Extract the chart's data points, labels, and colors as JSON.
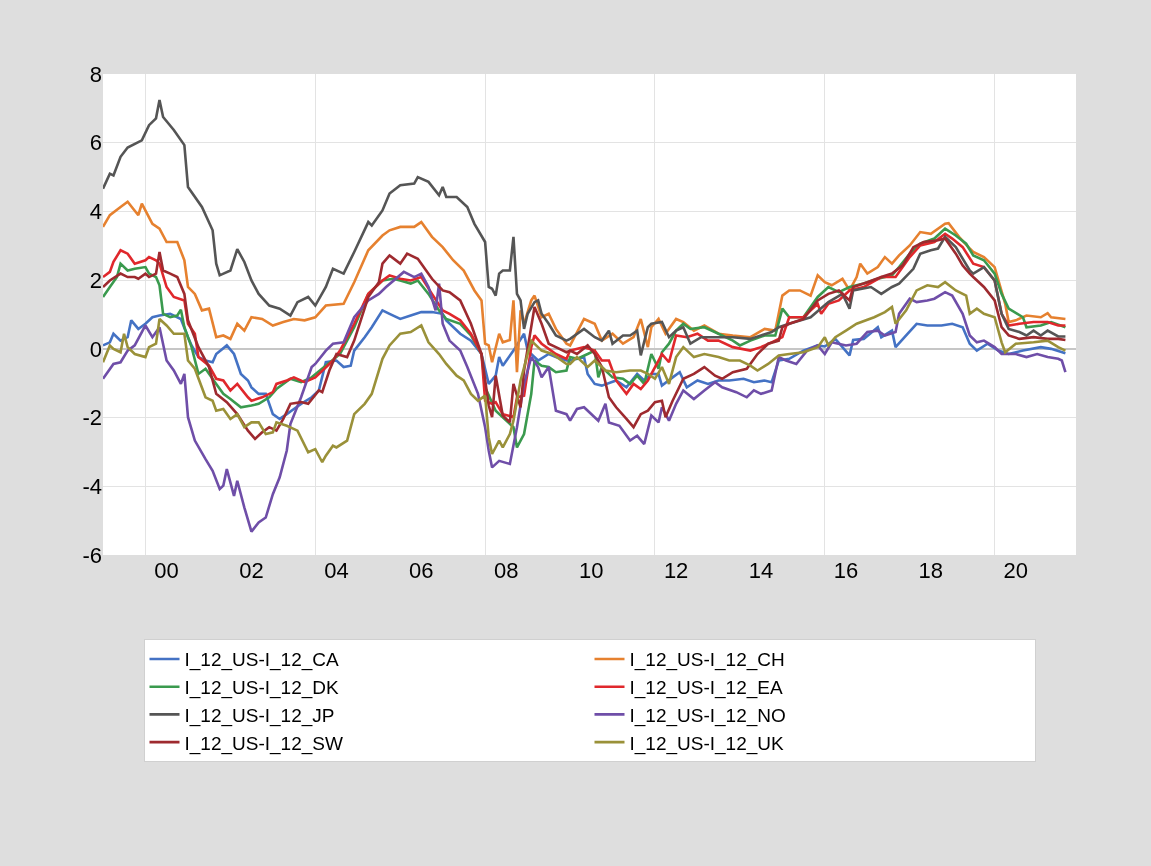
{
  "chart_data": {
    "type": "line",
    "xlim": [
      "1999-01",
      "2021-12"
    ],
    "ylim": [
      -6,
      8
    ],
    "yticks": [
      -6,
      -4,
      -2,
      0,
      2,
      4,
      6,
      8
    ],
    "xticks": [
      {
        "value": "2000-01",
        "label": null
      },
      {
        "value": "2004-01",
        "label": null
      },
      {
        "value": "2008-01",
        "label": null
      },
      {
        "value": "2012-01",
        "label": null
      },
      {
        "value": "2016-01",
        "label": null
      },
      {
        "value": "2020-01",
        "label": null
      },
      {
        "value": "2000-07",
        "label": "00"
      },
      {
        "value": "2002-07",
        "label": "02"
      },
      {
        "value": "2004-07",
        "label": "04"
      },
      {
        "value": "2006-07",
        "label": "06"
      },
      {
        "value": "2008-07",
        "label": "08"
      },
      {
        "value": "2010-07",
        "label": "10"
      },
      {
        "value": "2012-07",
        "label": "12"
      },
      {
        "value": "2014-07",
        "label": "14"
      },
      {
        "value": "2016-07",
        "label": "16"
      },
      {
        "value": "2018-07",
        "label": "18"
      },
      {
        "value": "2020-07",
        "label": "20"
      }
    ],
    "grid": true,
    "legend": "bottom",
    "line_style": "solid",
    "series": [
      {
        "name": "I_12_US-I_12_CA",
        "color": "#4472c4",
        "x": [
          "1999-01",
          "1999-03",
          "1999-04",
          "1999-06",
          "1999-08",
          "1999-09",
          "1999-11",
          "2000-01",
          "2000-03",
          "2000-05",
          "2000-08",
          "2000-11",
          "2001-01",
          "2001-02",
          "2001-04",
          "2001-06",
          "2001-08",
          "2001-09",
          "2001-12",
          "2002-02",
          "2002-04",
          "2002-06",
          "2002-07",
          "2002-09",
          "2002-11",
          "2003-01",
          "2003-03",
          "2003-05",
          "2003-07",
          "2003-09",
          "2003-12",
          "2004-02",
          "2004-04",
          "2004-07",
          "2004-09",
          "2004-11",
          "2004-12",
          "2005-03",
          "2005-05",
          "2005-08",
          "2005-10",
          "2006-01",
          "2006-04",
          "2006-07",
          "2006-10",
          "2007-01",
          "2007-02",
          "2007-06",
          "2007-09",
          "2007-12",
          "2008-02",
          "2008-04",
          "2008-05",
          "2008-06",
          "2008-09",
          "2008-12",
          "2009-01",
          "2009-04",
          "2009-07",
          "2009-09",
          "2009-12",
          "2010-01",
          "2010-05",
          "2010-06",
          "2010-08",
          "2010-10",
          "2011-02",
          "2011-05",
          "2011-08",
          "2011-10",
          "2011-12",
          "2012-02",
          "2012-03",
          "2012-06",
          "2012-08",
          "2012-10",
          "2013-01",
          "2013-04",
          "2013-07",
          "2013-10",
          "2014-02",
          "2014-05",
          "2014-08",
          "2014-10",
          "2014-12",
          "2015-03",
          "2015-07",
          "2015-11",
          "2016-01",
          "2016-04",
          "2016-08",
          "2016-09",
          "2016-12",
          "2017-04",
          "2017-05",
          "2017-08",
          "2017-09",
          "2017-12",
          "2018-03",
          "2018-06",
          "2018-10",
          "2019-01",
          "2019-04",
          "2019-06",
          "2019-08",
          "2019-11",
          "2020-02",
          "2020-05",
          "2020-09",
          "2021-02",
          "2021-05",
          "2021-09"
        ],
        "values": [
          0.1,
          0.19,
          0.44,
          0.24,
          0.34,
          0.83,
          0.58,
          0.73,
          0.92,
          0.97,
          1.02,
          0.87,
          0.34,
          0.1,
          -0.24,
          -0.34,
          -0.39,
          -0.15,
          0.1,
          -0.15,
          -0.73,
          -0.92,
          -1.12,
          -1.31,
          -1.31,
          -1.9,
          -2.04,
          -1.9,
          -1.75,
          -1.6,
          -1.41,
          -1.21,
          -0.39,
          -0.34,
          -0.53,
          -0.49,
          -0.05,
          0.34,
          0.63,
          1.12,
          1.02,
          0.87,
          0.97,
          1.07,
          1.07,
          1.02,
          0.83,
          0.44,
          0.24,
          -0.15,
          -1.02,
          -0.78,
          -0.24,
          -0.49,
          -0.05,
          0.44,
          -0.05,
          -0.34,
          -0.15,
          -0.24,
          -0.34,
          -0.34,
          -0.24,
          -0.73,
          -1.02,
          -1.07,
          -0.92,
          -1.12,
          -0.73,
          -0.92,
          -0.73,
          -0.73,
          -1.07,
          -0.83,
          -0.68,
          -1.12,
          -0.92,
          -1.02,
          -0.92,
          -0.92,
          -0.87,
          -0.97,
          -0.92,
          -0.97,
          -0.34,
          -0.29,
          -0.05,
          0.1,
          0.07,
          0.29,
          -0.19,
          0.26,
          0.29,
          0.63,
          0.34,
          0.53,
          0.05,
          0.39,
          0.73,
          0.68,
          0.68,
          0.73,
          0.63,
          0.15,
          -0.05,
          0.15,
          -0.05,
          -0.15,
          -0.05,
          0.05,
          0.0,
          -0.13
        ]
      },
      {
        "name": "I_12_US-I_12_CH",
        "color": "#e6812f",
        "x": [
          "1999-01",
          "1999-03",
          "1999-06",
          "1999-08",
          "1999-11",
          "1999-12",
          "2000-03",
          "2000-05",
          "2000-07",
          "2000-10",
          "2000-12",
          "2001-01",
          "2001-03",
          "2001-05",
          "2001-07",
          "2001-09",
          "2001-11",
          "2002-01",
          "2002-03",
          "2002-05",
          "2002-07",
          "2002-10",
          "2003-01",
          "2003-04",
          "2003-07",
          "2003-10",
          "2004-01",
          "2004-04",
          "2004-09",
          "2004-12",
          "2005-04",
          "2005-08",
          "2005-10",
          "2006-01",
          "2006-05",
          "2006-07",
          "2006-10",
          "2007-01",
          "2007-04",
          "2007-07",
          "2007-10",
          "2007-12",
          "2008-01",
          "2008-02",
          "2008-03",
          "2008-05",
          "2008-06",
          "2008-08",
          "2008-09",
          "2008-10",
          "2008-11",
          "2008-12",
          "2009-02",
          "2009-03",
          "2009-05",
          "2009-07",
          "2009-09",
          "2009-12",
          "2010-01",
          "2010-05",
          "2010-08",
          "2010-10",
          "2011-01",
          "2011-04",
          "2011-07",
          "2011-09",
          "2011-11",
          "2011-12",
          "2012-02",
          "2012-04",
          "2012-07",
          "2012-09",
          "2012-12",
          "2013-03",
          "2013-07",
          "2013-11",
          "2014-04",
          "2014-08",
          "2014-11",
          "2015-01",
          "2015-03",
          "2015-06",
          "2015-09",
          "2015-11",
          "2016-01",
          "2016-03",
          "2016-06",
          "2016-08",
          "2016-10",
          "2016-11",
          "2017-01",
          "2017-04",
          "2017-06",
          "2017-08",
          "2017-10",
          "2018-01",
          "2018-04",
          "2018-07",
          "2018-11",
          "2018-12",
          "2019-03",
          "2019-06",
          "2019-07",
          "2019-10",
          "2020-01",
          "2020-04",
          "2020-05",
          "2020-07",
          "2020-10",
          "2021-02",
          "2021-04",
          "2021-05",
          "2021-09"
        ],
        "values": [
          3.55,
          3.89,
          4.13,
          4.28,
          3.89,
          4.23,
          3.64,
          3.5,
          3.11,
          3.11,
          2.58,
          1.8,
          1.6,
          1.12,
          1.17,
          0.34,
          0.39,
          0.29,
          0.73,
          0.53,
          0.92,
          0.87,
          0.68,
          0.78,
          0.87,
          0.83,
          0.92,
          1.26,
          1.31,
          1.94,
          2.87,
          3.3,
          3.45,
          3.55,
          3.55,
          3.69,
          3.26,
          2.96,
          2.58,
          2.28,
          1.7,
          1.41,
          0.15,
          0.1,
          -0.39,
          0.44,
          0.19,
          0.26,
          1.41,
          -0.68,
          1.12,
          0.73,
          1.41,
          1.55,
          0.92,
          1.02,
          0.58,
          0.15,
          0.1,
          0.87,
          0.73,
          0.24,
          0.44,
          0.15,
          0.34,
          0.87,
          0.05,
          0.63,
          0.87,
          0.44,
          0.87,
          0.78,
          0.53,
          0.68,
          0.44,
          0.39,
          0.34,
          0.58,
          0.53,
          1.55,
          1.7,
          1.7,
          1.55,
          2.14,
          1.94,
          1.85,
          2.04,
          1.7,
          2.09,
          2.48,
          2.19,
          2.38,
          2.67,
          2.48,
          2.72,
          3.01,
          3.4,
          3.35,
          3.64,
          3.66,
          3.26,
          2.92,
          2.82,
          2.67,
          2.38,
          1.31,
          0.78,
          0.83,
          0.97,
          0.92,
          1.04,
          0.92,
          0.87
        ]
      },
      {
        "name": "I_12_US-I_12_DK",
        "color": "#3a9a4e",
        "x": [
          "1999-01",
          "1999-03",
          "1999-05",
          "1999-06",
          "1999-08",
          "1999-10",
          "2000-01",
          "2000-02",
          "2000-04",
          "2000-05",
          "2000-06",
          "2000-08",
          "2000-10",
          "2000-11",
          "2000-12",
          "2001-02",
          "2001-04",
          "2001-06",
          "2001-09",
          "2001-11",
          "2002-01",
          "2002-04",
          "2002-07",
          "2002-09",
          "2002-12",
          "2003-02",
          "2003-06",
          "2003-09",
          "2003-12",
          "2004-08",
          "2004-12",
          "2005-04",
          "2005-08",
          "2005-11",
          "2006-01",
          "2006-04",
          "2006-06",
          "2006-09",
          "2006-12",
          "2007-02",
          "2007-06",
          "2007-09",
          "2007-12",
          "2008-01",
          "2008-04",
          "2008-07",
          "2008-09",
          "2008-10",
          "2008-12",
          "2009-02",
          "2009-03",
          "2009-05",
          "2009-07",
          "2009-09",
          "2009-12",
          "2010-01",
          "2010-03",
          "2010-06",
          "2010-08",
          "2010-09",
          "2010-10",
          "2011-01",
          "2011-04",
          "2011-06",
          "2011-08",
          "2011-10",
          "2011-12",
          "2012-02",
          "2012-03",
          "2012-05",
          "2012-07",
          "2012-09",
          "2012-11",
          "2013-03",
          "2013-07",
          "2013-11",
          "2014-01",
          "2014-04",
          "2014-08",
          "2014-11",
          "2015-01",
          "2015-03",
          "2015-07",
          "2015-11",
          "2016-02",
          "2016-05",
          "2016-08",
          "2016-12",
          "2017-04",
          "2017-08",
          "2017-10",
          "2018-01",
          "2018-04",
          "2018-08",
          "2018-11",
          "2019-02",
          "2019-05",
          "2019-07",
          "2019-10",
          "2020-01",
          "2020-03",
          "2020-05",
          "2020-09",
          "2020-10",
          "2021-02",
          "2021-05",
          "2021-09"
        ],
        "values": [
          1.51,
          1.8,
          2.09,
          2.48,
          2.28,
          2.33,
          2.38,
          2.19,
          2.09,
          1.85,
          1.02,
          0.92,
          0.97,
          1.14,
          0.63,
          0.05,
          -0.73,
          -0.58,
          -1.02,
          -1.31,
          -1.46,
          -1.7,
          -1.65,
          -1.6,
          -1.41,
          -1.17,
          -0.87,
          -0.97,
          -0.83,
          -0.15,
          0.63,
          1.6,
          1.99,
          2.04,
          1.99,
          1.9,
          1.99,
          1.6,
          1.12,
          0.87,
          0.73,
          0.39,
          -0.15,
          -1.12,
          -1.8,
          -2.09,
          -2.28,
          -2.87,
          -2.48,
          -1.31,
          -0.34,
          -0.49,
          -0.53,
          -0.68,
          -0.63,
          -0.24,
          -0.29,
          -0.15,
          -0.05,
          -0.83,
          -0.53,
          -0.83,
          -0.87,
          -1.02,
          -0.78,
          -1.02,
          -0.15,
          -0.58,
          -0.1,
          0.15,
          0.53,
          0.73,
          0.58,
          0.63,
          0.44,
          0.24,
          0.1,
          0.24,
          0.39,
          0.39,
          1.17,
          0.92,
          0.92,
          1.51,
          1.8,
          1.65,
          1.8,
          1.9,
          2.04,
          2.14,
          2.38,
          2.77,
          3.06,
          3.21,
          3.5,
          3.3,
          3.06,
          2.72,
          2.58,
          2.19,
          1.6,
          1.17,
          0.92,
          0.63,
          0.68,
          0.78,
          0.63
        ]
      },
      {
        "name": "I_12_US-I_12_EA",
        "color": "#e0282c",
        "x": [
          "1999-01",
          "1999-03",
          "1999-04",
          "1999-06",
          "1999-08",
          "1999-10",
          "2000-01",
          "2000-02",
          "2000-04",
          "2000-05",
          "2000-07",
          "2000-09",
          "2000-12",
          "2001-01",
          "2001-03",
          "2001-04",
          "2001-07",
          "2001-09",
          "2001-11",
          "2002-01",
          "2002-03",
          "2002-06",
          "2002-07",
          "2002-10",
          "2003-01",
          "2003-02",
          "2003-05",
          "2003-07",
          "2003-10",
          "2004-01",
          "2004-06",
          "2004-08",
          "2004-12",
          "2005-04",
          "2005-08",
          "2005-10",
          "2006-01",
          "2006-04",
          "2006-07",
          "2006-10",
          "2007-01",
          "2007-03",
          "2007-06",
          "2007-09",
          "2007-12",
          "2008-01",
          "2008-03",
          "2008-04",
          "2008-06",
          "2008-09",
          "2008-10",
          "2008-12",
          "2009-02",
          "2009-03",
          "2009-05",
          "2009-09",
          "2009-12",
          "2010-01",
          "2010-05",
          "2010-08",
          "2010-10",
          "2010-12",
          "2011-02",
          "2011-05",
          "2011-07",
          "2011-09",
          "2011-11",
          "2012-02",
          "2012-03",
          "2012-05",
          "2012-07",
          "2012-10",
          "2013-01",
          "2013-04",
          "2013-07",
          "2013-11",
          "2014-04",
          "2014-07",
          "2014-10",
          "2015-01",
          "2015-03",
          "2015-07",
          "2015-11",
          "2015-12",
          "2016-02",
          "2016-05",
          "2016-08",
          "2016-12",
          "2017-05",
          "2017-09",
          "2018-01",
          "2018-04",
          "2018-08",
          "2018-11",
          "2019-01",
          "2019-04",
          "2019-07",
          "2019-10",
          "2020-01",
          "2020-03",
          "2020-05",
          "2020-08",
          "2020-12",
          "2021-04",
          "2021-07",
          "2021-09"
        ],
        "values": [
          2.09,
          2.24,
          2.53,
          2.87,
          2.77,
          2.48,
          2.58,
          2.67,
          2.58,
          2.48,
          1.8,
          1.51,
          1.41,
          0.73,
          0.44,
          -0.24,
          -0.49,
          -0.87,
          -0.92,
          -1.21,
          -1.02,
          -1.41,
          -1.51,
          -1.41,
          -1.26,
          -1.02,
          -0.92,
          -0.83,
          -0.97,
          -0.83,
          -0.34,
          -0.05,
          0.73,
          1.6,
          1.99,
          2.14,
          2.04,
          1.99,
          2.09,
          1.6,
          1.12,
          1.02,
          0.83,
          0.44,
          -0.15,
          -1.51,
          -1.6,
          -1.55,
          -1.9,
          -1.99,
          -1.41,
          -1.36,
          0.05,
          0.39,
          0.15,
          -0.15,
          -0.29,
          -0.05,
          0.05,
          -0.05,
          -0.34,
          -0.34,
          -0.92,
          -1.31,
          -1.02,
          -1.17,
          -0.92,
          -0.34,
          -0.15,
          -0.39,
          0.39,
          0.34,
          0.44,
          0.24,
          0.24,
          0.05,
          -0.05,
          0.05,
          0.19,
          0.34,
          0.92,
          0.92,
          1.31,
          1.02,
          1.31,
          1.41,
          1.7,
          1.8,
          2.09,
          2.09,
          2.67,
          3.01,
          3.11,
          3.35,
          3.21,
          2.96,
          2.48,
          2.38,
          1.99,
          1.02,
          0.68,
          0.73,
          0.78,
          0.78,
          0.68,
          0.68
        ]
      },
      {
        "name": "I_12_US-I_12_JP",
        "color": "#555555",
        "x": [
          "1999-01",
          "1999-03",
          "1999-04",
          "1999-06",
          "1999-08",
          "1999-12",
          "2000-02",
          "2000-04",
          "2000-05",
          "2000-06",
          "2000-09",
          "2000-12",
          "2001-01",
          "2001-05",
          "2001-08",
          "2001-09",
          "2001-10",
          "2002-01",
          "2002-03",
          "2002-05",
          "2002-07",
          "2002-09",
          "2002-12",
          "2003-03",
          "2003-06",
          "2003-08",
          "2003-11",
          "2004-01",
          "2004-04",
          "2004-06",
          "2004-09",
          "2004-12",
          "2005-04",
          "2005-05",
          "2005-08",
          "2005-10",
          "2006-01",
          "2006-05",
          "2006-06",
          "2006-09",
          "2006-12",
          "2007-01",
          "2007-02",
          "2007-05",
          "2007-08",
          "2007-10",
          "2008-01",
          "2008-02",
          "2008-03",
          "2008-04",
          "2008-05",
          "2008-06",
          "2008-08",
          "2008-09",
          "2008-10",
          "2008-11",
          "2008-12",
          "2009-01",
          "2009-03",
          "2009-04",
          "2009-05",
          "2009-07",
          "2009-09",
          "2009-12",
          "2010-01",
          "2010-05",
          "2010-08",
          "2010-10",
          "2010-12",
          "2011-01",
          "2011-04",
          "2011-06",
          "2011-08",
          "2011-09",
          "2011-11",
          "2011-12",
          "2012-03",
          "2012-05",
          "2012-07",
          "2012-09",
          "2012-11",
          "2013-02",
          "2013-07",
          "2013-11",
          "2014-04",
          "2014-07",
          "2014-10",
          "2014-12",
          "2015-03",
          "2015-09",
          "2016-02",
          "2016-06",
          "2016-08",
          "2016-09",
          "2017-02",
          "2017-05",
          "2017-08",
          "2017-10",
          "2018-02",
          "2018-04",
          "2018-07",
          "2018-09",
          "2018-11",
          "2019-02",
          "2019-06",
          "2019-07",
          "2019-10",
          "2020-01",
          "2020-03",
          "2020-05",
          "2020-08",
          "2020-10",
          "2020-12",
          "2021-02",
          "2021-04",
          "2021-07",
          "2021-09"
        ],
        "values": [
          4.66,
          5.1,
          5.05,
          5.59,
          5.86,
          6.07,
          6.51,
          6.71,
          7.24,
          6.75,
          6.37,
          5.93,
          4.71,
          4.13,
          3.45,
          2.48,
          2.14,
          2.28,
          2.9,
          2.53,
          1.99,
          1.6,
          1.26,
          1.17,
          0.97,
          1.36,
          1.51,
          1.26,
          1.8,
          2.33,
          2.19,
          2.82,
          3.69,
          3.59,
          4.03,
          4.52,
          4.76,
          4.81,
          5.0,
          4.86,
          4.47,
          4.71,
          4.42,
          4.42,
          4.13,
          3.64,
          3.11,
          1.8,
          1.75,
          1.55,
          2.19,
          2.28,
          2.28,
          3.26,
          1.6,
          1.41,
          0.58,
          1.02,
          1.36,
          1.41,
          1.02,
          0.73,
          0.39,
          0.24,
          0.29,
          0.58,
          0.34,
          0.24,
          0.53,
          0.15,
          0.39,
          0.39,
          0.53,
          -0.19,
          0.63,
          0.73,
          0.78,
          0.34,
          0.53,
          0.63,
          0.15,
          0.34,
          0.34,
          0.34,
          0.29,
          0.39,
          0.49,
          0.63,
          0.73,
          0.92,
          1.36,
          1.6,
          1.17,
          1.7,
          1.8,
          1.6,
          1.8,
          1.9,
          2.33,
          2.77,
          2.87,
          2.92,
          3.26,
          2.96,
          2.28,
          2.19,
          2.38,
          1.99,
          1.02,
          0.58,
          0.49,
          0.39,
          0.53,
          0.39,
          0.53,
          0.36,
          0.36
        ]
      },
      {
        "name": "I_12_US-I_12_NO",
        "color": "#6f4ea8",
        "x": [
          "1999-01",
          "1999-04",
          "1999-06",
          "1999-08",
          "1999-10",
          "1999-12",
          "2000-01",
          "2000-03",
          "2000-05",
          "2000-07",
          "2000-09",
          "2000-11",
          "2000-12",
          "2001-01",
          "2001-03",
          "2001-06",
          "2001-08",
          "2001-10",
          "2001-11",
          "2001-12",
          "2002-02",
          "2002-03",
          "2002-05",
          "2002-07",
          "2002-09",
          "2002-11",
          "2003-01",
          "2003-03",
          "2003-05",
          "2003-06",
          "2003-09",
          "2003-12",
          "2004-01",
          "2004-04",
          "2004-06",
          "2004-09",
          "2004-12",
          "2005-04",
          "2005-07",
          "2005-09",
          "2006-02",
          "2006-05",
          "2006-07",
          "2006-09",
          "2006-11",
          "2006-12",
          "2007-01",
          "2007-03",
          "2007-06",
          "2007-08",
          "2007-11",
          "2008-01",
          "2008-02",
          "2008-03",
          "2008-05",
          "2008-08",
          "2008-10",
          "2008-12",
          "2009-02",
          "2009-04",
          "2009-05",
          "2009-07",
          "2009-09",
          "2009-12",
          "2010-01",
          "2010-03",
          "2010-05",
          "2010-09",
          "2010-11",
          "2010-12",
          "2011-03",
          "2011-06",
          "2011-08",
          "2011-10",
          "2011-12",
          "2012-02",
          "2012-03",
          "2012-05",
          "2012-07",
          "2012-09",
          "2012-12",
          "2013-03",
          "2013-06",
          "2013-08",
          "2013-12",
          "2014-03",
          "2014-05",
          "2014-07",
          "2014-10",
          "2014-12",
          "2015-02",
          "2015-05",
          "2015-08",
          "2015-11",
          "2016-01",
          "2016-03",
          "2016-07",
          "2016-10",
          "2017-01",
          "2017-04",
          "2017-06",
          "2017-09",
          "2017-10",
          "2018-01",
          "2018-03",
          "2018-06",
          "2018-08",
          "2018-11",
          "2019-01",
          "2019-04",
          "2019-06",
          "2019-08",
          "2019-10",
          "2020-01",
          "2020-03",
          "2020-07",
          "2020-10",
          "2021-01",
          "2021-04",
          "2021-07",
          "2021-08",
          "2021-09"
        ],
        "values": [
          -0.87,
          -0.44,
          -0.39,
          -0.05,
          0.1,
          0.49,
          0.68,
          0.34,
          0.63,
          -0.34,
          -0.63,
          -1.02,
          -0.73,
          -1.99,
          -2.67,
          -3.21,
          -3.55,
          -4.08,
          -3.98,
          -3.5,
          -4.28,
          -3.84,
          -4.62,
          -5.32,
          -5.05,
          -4.91,
          -4.23,
          -3.74,
          -2.96,
          -2.19,
          -1.41,
          -0.53,
          -0.44,
          -0.05,
          0.15,
          0.19,
          0.92,
          1.41,
          1.6,
          1.8,
          2.24,
          2.09,
          2.19,
          1.8,
          1.12,
          1.9,
          0.73,
          0.24,
          -0.05,
          -0.53,
          -1.31,
          -2.28,
          -2.96,
          -3.45,
          -3.26,
          -3.35,
          -2.28,
          -1.02,
          -0.24,
          -0.53,
          -0.83,
          -0.53,
          -1.8,
          -1.9,
          -2.09,
          -1.75,
          -1.7,
          -2.09,
          -1.6,
          -2.14,
          -2.24,
          -2.67,
          -2.53,
          -2.77,
          -1.94,
          -2.14,
          -1.7,
          -2.09,
          -1.6,
          -1.21,
          -1.46,
          -1.21,
          -0.97,
          -1.12,
          -1.26,
          -1.41,
          -1.21,
          -1.31,
          -1.21,
          -0.24,
          -0.34,
          -0.44,
          -0.05,
          0.1,
          -0.15,
          0.19,
          0.1,
          0.15,
          0.49,
          0.53,
          0.39,
          0.49,
          1.02,
          1.46,
          1.36,
          1.41,
          1.46,
          1.65,
          1.55,
          1.02,
          0.39,
          0.19,
          0.24,
          0.05,
          -0.15,
          -0.15,
          -0.24,
          -0.15,
          -0.24,
          -0.29,
          -0.34,
          -0.68
        ]
      },
      {
        "name": "I_12_US-I_12_SW",
        "color": "#9e2a2f",
        "x": [
          "1999-01",
          "1999-03",
          "1999-06",
          "1999-08",
          "1999-10",
          "1999-11",
          "2000-01",
          "2000-02",
          "2000-04",
          "2000-05",
          "2000-06",
          "2000-08",
          "2000-10",
          "2000-12",
          "2001-01",
          "2001-04",
          "2001-07",
          "2001-09",
          "2001-12",
          "2002-03",
          "2002-06",
          "2002-08",
          "2002-10",
          "2002-12",
          "2003-02",
          "2003-04",
          "2003-06",
          "2003-09",
          "2003-11",
          "2004-02",
          "2004-03",
          "2004-05",
          "2004-07",
          "2004-10",
          "2004-12",
          "2005-04",
          "2005-07",
          "2005-08",
          "2005-10",
          "2006-01",
          "2006-03",
          "2006-06",
          "2006-10",
          "2007-01",
          "2007-03",
          "2007-06",
          "2007-09",
          "2007-12",
          "2008-02",
          "2008-03",
          "2008-04",
          "2008-06",
          "2008-08",
          "2008-09",
          "2008-11",
          "2008-12",
          "2009-03",
          "2009-05",
          "2009-07",
          "2009-09",
          "2009-12",
          "2010-01",
          "2010-03",
          "2010-06",
          "2010-08",
          "2010-10",
          "2010-12",
          "2011-02",
          "2011-05",
          "2011-07",
          "2011-09",
          "2011-11",
          "2012-01",
          "2012-03",
          "2012-04",
          "2012-06",
          "2012-09",
          "2012-12",
          "2013-03",
          "2013-06",
          "2013-08",
          "2013-11",
          "2014-03",
          "2014-06",
          "2014-09",
          "2014-12",
          "2015-01",
          "2015-03",
          "2015-07",
          "2015-11",
          "2016-02",
          "2016-05",
          "2016-08",
          "2016-09",
          "2017-01",
          "2017-05",
          "2017-08",
          "2017-11",
          "2018-02",
          "2018-05",
          "2018-09",
          "2018-11",
          "2019-02",
          "2019-04",
          "2019-06",
          "2019-07",
          "2019-10",
          "2020-01",
          "2020-03",
          "2020-05",
          "2020-08",
          "2020-12",
          "2021-04",
          "2021-07",
          "2021-09"
        ],
        "values": [
          1.8,
          1.99,
          2.19,
          2.09,
          2.09,
          2.04,
          2.19,
          2.09,
          2.19,
          2.82,
          2.28,
          2.19,
          2.09,
          1.6,
          0.83,
          0.05,
          -0.53,
          -1.31,
          -1.55,
          -1.9,
          -2.38,
          -2.62,
          -2.43,
          -2.28,
          -2.38,
          -2.04,
          -1.6,
          -1.55,
          -1.6,
          -1.21,
          -1.26,
          -0.63,
          -0.15,
          -0.24,
          0.24,
          1.51,
          1.94,
          2.48,
          2.72,
          2.48,
          2.77,
          2.62,
          2.04,
          1.7,
          1.65,
          1.41,
          0.73,
          -0.15,
          -1.65,
          -1.99,
          -0.78,
          -1.94,
          -2.14,
          -1.02,
          -1.7,
          -0.63,
          1.22,
          0.73,
          0.15,
          0.05,
          -0.1,
          -0.05,
          -0.15,
          0.1,
          -0.15,
          -0.53,
          -1.41,
          -1.7,
          -2.04,
          -2.28,
          -1.9,
          -1.8,
          -1.55,
          -1.51,
          -1.99,
          -1.51,
          -0.87,
          -0.73,
          -0.53,
          -0.78,
          -0.87,
          -0.68,
          -0.58,
          -0.15,
          0.15,
          0.24,
          0.63,
          0.73,
          0.87,
          1.41,
          1.6,
          1.7,
          1.41,
          1.8,
          1.94,
          2.09,
          2.19,
          2.43,
          2.96,
          3.11,
          3.16,
          3.21,
          2.77,
          2.43,
          2.19,
          2.09,
          1.8,
          1.41,
          0.63,
          0.39,
          0.29,
          0.34,
          0.29,
          0.29,
          0.26
        ]
      },
      {
        "name": "I_12_US-I_12_UK",
        "color": "#9a9139",
        "x": [
          "1999-01",
          "1999-03",
          "1999-04",
          "1999-06",
          "1999-07",
          "1999-08",
          "1999-10",
          "2000-01",
          "2000-02",
          "2000-04",
          "2000-05",
          "2000-07",
          "2000-09",
          "2000-12",
          "2001-01",
          "2001-03",
          "2001-06",
          "2001-08",
          "2001-09",
          "2001-11",
          "2002-01",
          "2002-03",
          "2002-05",
          "2002-07",
          "2002-09",
          "2002-11",
          "2003-01",
          "2003-02",
          "2003-05",
          "2003-08",
          "2003-11",
          "2004-01",
          "2004-03",
          "2004-04",
          "2004-06",
          "2004-07",
          "2004-10",
          "2004-12",
          "2005-03",
          "2005-05",
          "2005-08",
          "2005-10",
          "2006-01",
          "2006-04",
          "2006-07",
          "2006-09",
          "2006-12",
          "2007-02",
          "2007-05",
          "2007-07",
          "2007-09",
          "2007-11",
          "2008-01",
          "2008-02",
          "2008-03",
          "2008-05",
          "2008-06",
          "2008-08",
          "2008-09",
          "2008-11",
          "2009-02",
          "2009-05",
          "2009-08",
          "2009-12",
          "2010-01",
          "2010-03",
          "2010-06",
          "2010-08",
          "2010-10",
          "2010-11",
          "2011-02",
          "2011-06",
          "2011-09",
          "2011-11",
          "2012-01",
          "2012-03",
          "2012-05",
          "2012-07",
          "2012-09",
          "2012-12",
          "2013-03",
          "2013-07",
          "2013-10",
          "2014-01",
          "2014-04",
          "2014-06",
          "2014-09",
          "2014-12",
          "2015-03",
          "2015-07",
          "2015-11",
          "2016-01",
          "2016-02",
          "2016-04",
          "2016-07",
          "2016-10",
          "2017-03",
          "2017-06",
          "2017-08",
          "2017-09",
          "2017-12",
          "2018-03",
          "2018-06",
          "2018-09",
          "2018-11",
          "2019-02",
          "2019-05",
          "2019-06",
          "2019-08",
          "2019-10",
          "2020-01",
          "2020-03",
          "2020-04",
          "2020-07",
          "2020-12",
          "2021-04",
          "2021-07",
          "2021-09"
        ],
        "values": [
          -0.39,
          0.1,
          0.0,
          -0.1,
          0.44,
          0.05,
          -0.15,
          -0.24,
          0.05,
          0.15,
          0.87,
          0.68,
          0.44,
          0.44,
          -0.34,
          -0.58,
          -1.41,
          -1.51,
          -1.8,
          -1.75,
          -2.04,
          -1.9,
          -2.28,
          -2.14,
          -2.14,
          -2.48,
          -2.43,
          -2.14,
          -2.24,
          -2.38,
          -3.01,
          -2.92,
          -3.3,
          -3.11,
          -2.82,
          -2.87,
          -2.67,
          -1.9,
          -1.6,
          -1.31,
          -0.29,
          0.1,
          0.44,
          0.49,
          0.68,
          0.19,
          -0.15,
          -0.44,
          -0.78,
          -0.92,
          -1.31,
          -1.51,
          -1.36,
          -2.57,
          -3.06,
          -2.67,
          -2.87,
          -2.48,
          -2.09,
          -0.92,
          0.24,
          -0.05,
          -0.15,
          -0.44,
          -0.44,
          -0.24,
          -0.53,
          -0.34,
          -0.53,
          -0.63,
          -0.68,
          -0.63,
          -0.63,
          -0.73,
          -0.87,
          -0.53,
          -1.02,
          -0.24,
          0.05,
          -0.24,
          -0.15,
          -0.24,
          -0.34,
          -0.34,
          -0.49,
          -0.63,
          -0.44,
          -0.19,
          -0.15,
          -0.1,
          0.05,
          0.34,
          0.1,
          0.34,
          0.53,
          0.73,
          0.92,
          1.07,
          1.22,
          0.73,
          1.12,
          1.7,
          1.85,
          1.8,
          1.94,
          1.7,
          1.55,
          1.02,
          1.17,
          1.02,
          0.92,
          0.19,
          -0.1,
          0.15,
          0.19,
          0.24,
          0.05,
          -0.05
        ]
      }
    ]
  }
}
